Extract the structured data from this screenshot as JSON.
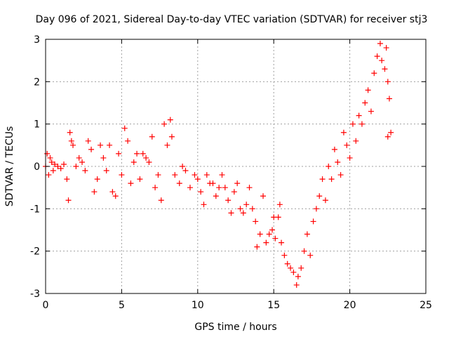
{
  "chart_data": {
    "type": "scatter",
    "title": "Day 096 of 2021, Sidereal Day-to-day VTEC variation (SDTVAR) for receiver stj3",
    "xlabel": "GPS time / hours",
    "ylabel": "SDTVAR / TECUs",
    "xlim": [
      0,
      25
    ],
    "ylim": [
      -3,
      3
    ],
    "xticks": [
      "0",
      "5",
      "10",
      "15",
      "20",
      "25"
    ],
    "yticks": [
      "-3",
      "-2",
      "-1",
      "0",
      "1",
      "2",
      "3"
    ],
    "grid": true,
    "marker": "+",
    "series": [
      {
        "name": "SDTVAR",
        "color": "#ff0000",
        "points": [
          [
            0.0,
            0.0
          ],
          [
            0.1,
            0.3
          ],
          [
            0.2,
            -0.2
          ],
          [
            0.3,
            0.2
          ],
          [
            0.4,
            0.1
          ],
          [
            0.5,
            -0.1
          ],
          [
            0.6,
            0.05
          ],
          [
            0.8,
            0.0
          ],
          [
            1.0,
            -0.05
          ],
          [
            1.2,
            0.05
          ],
          [
            1.4,
            -0.3
          ],
          [
            1.5,
            -0.8
          ],
          [
            1.6,
            0.8
          ],
          [
            1.7,
            0.6
          ],
          [
            1.8,
            0.5
          ],
          [
            2.0,
            0.0
          ],
          [
            2.2,
            0.2
          ],
          [
            2.4,
            0.1
          ],
          [
            2.6,
            -0.1
          ],
          [
            2.8,
            0.6
          ],
          [
            3.0,
            0.4
          ],
          [
            3.2,
            -0.6
          ],
          [
            3.4,
            -0.3
          ],
          [
            3.6,
            0.5
          ],
          [
            3.8,
            0.2
          ],
          [
            4.0,
            -0.1
          ],
          [
            4.2,
            0.5
          ],
          [
            4.4,
            -0.6
          ],
          [
            4.6,
            -0.7
          ],
          [
            4.8,
            0.3
          ],
          [
            5.0,
            -0.2
          ],
          [
            5.2,
            0.9
          ],
          [
            5.4,
            0.6
          ],
          [
            5.6,
            -0.4
          ],
          [
            5.8,
            0.1
          ],
          [
            6.0,
            0.3
          ],
          [
            6.2,
            -0.3
          ],
          [
            6.4,
            0.3
          ],
          [
            6.6,
            0.2
          ],
          [
            6.8,
            0.1
          ],
          [
            7.0,
            0.7
          ],
          [
            7.2,
            -0.5
          ],
          [
            7.4,
            -0.2
          ],
          [
            7.6,
            -0.8
          ],
          [
            7.8,
            1.0
          ],
          [
            8.0,
            0.5
          ],
          [
            8.2,
            1.1
          ],
          [
            8.3,
            0.7
          ],
          [
            8.5,
            -0.2
          ],
          [
            8.8,
            -0.4
          ],
          [
            9.0,
            0.0
          ],
          [
            9.2,
            -0.1
          ],
          [
            9.5,
            -0.5
          ],
          [
            9.8,
            -0.2
          ],
          [
            10.0,
            -0.3
          ],
          [
            10.2,
            -0.6
          ],
          [
            10.4,
            -0.9
          ],
          [
            10.6,
            -0.2
          ],
          [
            10.8,
            -0.4
          ],
          [
            11.0,
            -0.4
          ],
          [
            11.2,
            -0.7
          ],
          [
            11.4,
            -0.5
          ],
          [
            11.6,
            -0.2
          ],
          [
            11.8,
            -0.5
          ],
          [
            12.0,
            -0.8
          ],
          [
            12.2,
            -1.1
          ],
          [
            12.4,
            -0.6
          ],
          [
            12.6,
            -0.4
          ],
          [
            12.8,
            -1.0
          ],
          [
            13.0,
            -1.1
          ],
          [
            13.2,
            -0.9
          ],
          [
            13.4,
            -0.5
          ],
          [
            13.6,
            -1.0
          ],
          [
            13.8,
            -1.3
          ],
          [
            13.9,
            -1.9
          ],
          [
            14.1,
            -1.6
          ],
          [
            14.3,
            -0.7
          ],
          [
            14.5,
            -1.8
          ],
          [
            14.7,
            -1.6
          ],
          [
            14.9,
            -1.5
          ],
          [
            15.0,
            -1.2
          ],
          [
            15.1,
            -1.7
          ],
          [
            15.3,
            -1.2
          ],
          [
            15.4,
            -0.9
          ],
          [
            15.5,
            -1.8
          ],
          [
            15.7,
            -2.1
          ],
          [
            15.9,
            -2.3
          ],
          [
            16.1,
            -2.4
          ],
          [
            16.3,
            -2.5
          ],
          [
            16.5,
            -2.8
          ],
          [
            16.6,
            -2.6
          ],
          [
            16.8,
            -2.4
          ],
          [
            17.0,
            -2.0
          ],
          [
            17.2,
            -1.6
          ],
          [
            17.4,
            -2.1
          ],
          [
            17.6,
            -1.3
          ],
          [
            17.8,
            -1.0
          ],
          [
            18.0,
            -0.7
          ],
          [
            18.2,
            -0.3
          ],
          [
            18.4,
            -0.8
          ],
          [
            18.6,
            0.0
          ],
          [
            18.8,
            -0.3
          ],
          [
            19.0,
            0.4
          ],
          [
            19.2,
            0.1
          ],
          [
            19.4,
            -0.2
          ],
          [
            19.6,
            0.8
          ],
          [
            19.8,
            0.5
          ],
          [
            20.0,
            0.2
          ],
          [
            20.2,
            1.0
          ],
          [
            20.4,
            0.6
          ],
          [
            20.6,
            1.2
          ],
          [
            20.8,
            1.0
          ],
          [
            21.0,
            1.5
          ],
          [
            21.2,
            1.8
          ],
          [
            21.4,
            1.3
          ],
          [
            21.6,
            2.2
          ],
          [
            21.8,
            2.6
          ],
          [
            22.0,
            2.9
          ],
          [
            22.1,
            2.5
          ],
          [
            22.3,
            2.3
          ],
          [
            22.4,
            2.8
          ],
          [
            22.5,
            2.0
          ],
          [
            22.6,
            1.6
          ],
          [
            22.7,
            0.8
          ],
          [
            22.5,
            0.7
          ]
        ]
      }
    ]
  }
}
